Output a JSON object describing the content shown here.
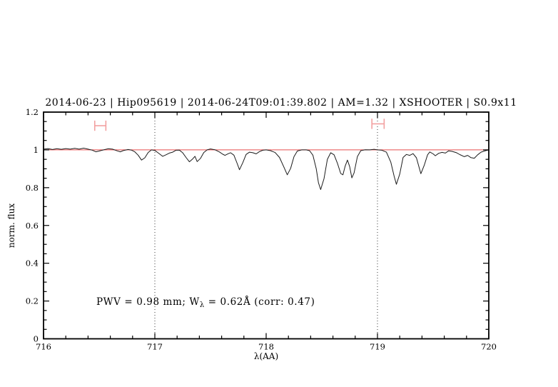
{
  "chart_data": {
    "type": "line",
    "title": "2014-06-23 | Hip095619 | 2014-06-24T09:01:39.802 | AM=1.32 | XSHOOTER | S0.9x11",
    "xlabel": "λ(AA)",
    "ylabel": "norm. flux",
    "xlim": [
      716,
      720
    ],
    "ylim": [
      0,
      1.2
    ],
    "x_major_ticks": [
      716,
      717,
      718,
      719,
      720
    ],
    "x_tick_labels": [
      "716",
      "717",
      "718",
      "719",
      "720"
    ],
    "x_minor_step": 0.2,
    "y_major_ticks": [
      0,
      0.2,
      0.4,
      0.6,
      0.8,
      1,
      1.2
    ],
    "y_tick_labels": [
      "0",
      "0.2",
      "0.4",
      "0.6",
      "0.8",
      "1",
      "1.2"
    ],
    "y_minor_step": 0.05,
    "grid": false,
    "legend": "none",
    "vlines_dotted": [
      717,
      719
    ],
    "continuum": {
      "y": 1.0
    },
    "markers": [
      {
        "x1": 716.46,
        "x2": 716.56,
        "y": 1.128,
        "cap": 0.027
      },
      {
        "x1": 718.95,
        "x2": 719.06,
        "y": 1.138,
        "cap": 0.027
      }
    ],
    "annotation": {
      "pre": "PWV = 0.98 mm; W",
      "sub": "λ",
      "post": " = 0.62Å (corr: 0.47)",
      "x": 716.48,
      "y": 0.2
    },
    "colors": {
      "title": "#2020cc",
      "annotation": "#2020cc",
      "spectrum": "#1b1b1b",
      "continuum": "#e84f4f",
      "marker": "#f2a0a0"
    },
    "series": [
      {
        "name": "observed spectrum",
        "points": [
          [
            716.0,
            1.004
          ],
          [
            716.04,
            1.007
          ],
          [
            716.08,
            1.002
          ],
          [
            716.12,
            1.006
          ],
          [
            716.16,
            1.003
          ],
          [
            716.2,
            1.007
          ],
          [
            716.24,
            1.004
          ],
          [
            716.28,
            1.008
          ],
          [
            716.32,
            1.004
          ],
          [
            716.36,
            1.009
          ],
          [
            716.4,
            1.004
          ],
          [
            716.44,
            0.998
          ],
          [
            716.47,
            0.99
          ],
          [
            716.5,
            0.994
          ],
          [
            716.54,
            1.0
          ],
          [
            716.58,
            1.006
          ],
          [
            716.62,
            1.004
          ],
          [
            716.66,
            0.995
          ],
          [
            716.69,
            0.99
          ],
          [
            716.72,
            0.997
          ],
          [
            716.76,
            1.002
          ],
          [
            716.79,
            0.999
          ],
          [
            716.82,
            0.99
          ],
          [
            716.85,
            0.972
          ],
          [
            716.88,
            0.946
          ],
          [
            716.91,
            0.958
          ],
          [
            716.94,
            0.986
          ],
          [
            716.97,
            1.0
          ],
          [
            717.0,
            0.997
          ],
          [
            717.03,
            0.984
          ],
          [
            717.07,
            0.966
          ],
          [
            717.1,
            0.974
          ],
          [
            717.13,
            0.983
          ],
          [
            717.16,
            0.988
          ],
          [
            717.19,
            0.998
          ],
          [
            717.22,
            0.999
          ],
          [
            717.25,
            0.985
          ],
          [
            717.28,
            0.96
          ],
          [
            717.31,
            0.937
          ],
          [
            717.34,
            0.952
          ],
          [
            717.36,
            0.966
          ],
          [
            717.38,
            0.938
          ],
          [
            717.41,
            0.955
          ],
          [
            717.44,
            0.986
          ],
          [
            717.47,
            1.0
          ],
          [
            717.5,
            1.005
          ],
          [
            717.54,
            1.001
          ],
          [
            717.58,
            0.989
          ],
          [
            717.61,
            0.977
          ],
          [
            717.63,
            0.971
          ],
          [
            717.66,
            0.98
          ],
          [
            717.68,
            0.985
          ],
          [
            717.71,
            0.972
          ],
          [
            717.74,
            0.928
          ],
          [
            717.76,
            0.895
          ],
          [
            717.79,
            0.932
          ],
          [
            717.82,
            0.976
          ],
          [
            717.85,
            0.988
          ],
          [
            717.88,
            0.985
          ],
          [
            717.91,
            0.979
          ],
          [
            717.94,
            0.991
          ],
          [
            717.97,
            0.998
          ],
          [
            718.0,
            1.0
          ],
          [
            718.04,
            0.996
          ],
          [
            718.08,
            0.986
          ],
          [
            718.12,
            0.96
          ],
          [
            718.16,
            0.908
          ],
          [
            718.19,
            0.868
          ],
          [
            718.22,
            0.902
          ],
          [
            718.25,
            0.964
          ],
          [
            718.28,
            0.994
          ],
          [
            718.32,
            1.0
          ],
          [
            718.36,
            1.0
          ],
          [
            718.39,
            0.996
          ],
          [
            718.42,
            0.972
          ],
          [
            718.45,
            0.9
          ],
          [
            718.47,
            0.826
          ],
          [
            718.49,
            0.79
          ],
          [
            718.52,
            0.848
          ],
          [
            718.55,
            0.95
          ],
          [
            718.58,
            0.985
          ],
          [
            718.61,
            0.974
          ],
          [
            718.64,
            0.93
          ],
          [
            718.67,
            0.875
          ],
          [
            718.69,
            0.868
          ],
          [
            718.71,
            0.915
          ],
          [
            718.73,
            0.946
          ],
          [
            718.75,
            0.912
          ],
          [
            718.77,
            0.852
          ],
          [
            718.79,
            0.878
          ],
          [
            718.82,
            0.965
          ],
          [
            718.85,
            0.996
          ],
          [
            718.89,
            1.001
          ],
          [
            718.93,
            1.0
          ],
          [
            718.97,
            1.003
          ],
          [
            719.0,
            1.0
          ],
          [
            719.04,
            0.998
          ],
          [
            719.08,
            0.988
          ],
          [
            719.12,
            0.935
          ],
          [
            719.15,
            0.86
          ],
          [
            719.17,
            0.818
          ],
          [
            719.2,
            0.872
          ],
          [
            719.23,
            0.96
          ],
          [
            719.26,
            0.976
          ],
          [
            719.29,
            0.971
          ],
          [
            719.32,
            0.98
          ],
          [
            719.35,
            0.958
          ],
          [
            719.39,
            0.874
          ],
          [
            719.42,
            0.918
          ],
          [
            719.45,
            0.974
          ],
          [
            719.47,
            0.989
          ],
          [
            719.5,
            0.979
          ],
          [
            719.52,
            0.969
          ],
          [
            719.55,
            0.982
          ],
          [
            719.58,
            0.987
          ],
          [
            719.61,
            0.983
          ],
          [
            719.64,
            0.995
          ],
          [
            719.67,
            0.992
          ],
          [
            719.71,
            0.985
          ],
          [
            719.74,
            0.975
          ],
          [
            719.78,
            0.964
          ],
          [
            719.81,
            0.971
          ],
          [
            719.84,
            0.959
          ],
          [
            719.87,
            0.956
          ],
          [
            719.9,
            0.974
          ],
          [
            719.93,
            0.988
          ],
          [
            719.96,
            0.994
          ],
          [
            720.0,
            1.0
          ]
        ]
      }
    ]
  }
}
